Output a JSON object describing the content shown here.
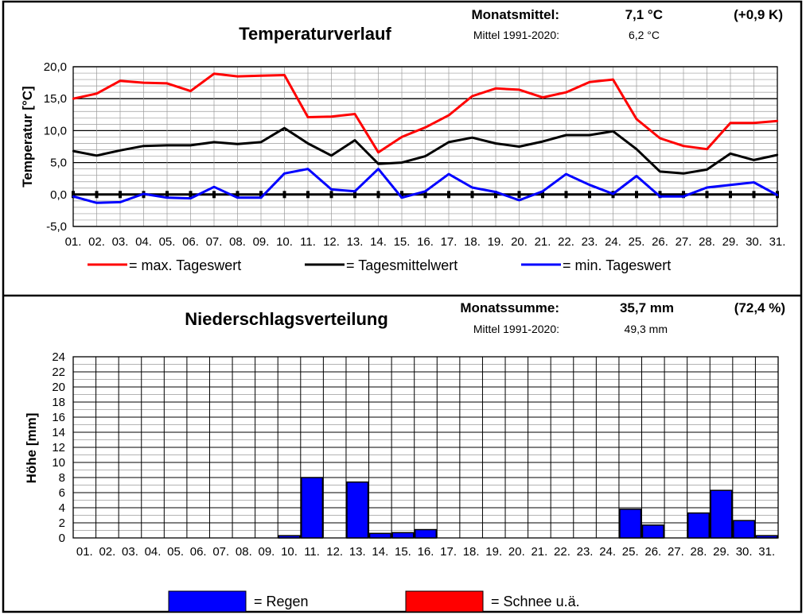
{
  "colors": {
    "max": "#ff0000",
    "mean": "#000000",
    "min": "#0000ff",
    "rain": "#0000ff",
    "snow": "#ff0000",
    "grid": "#9a9a9a",
    "frame": "#000000"
  },
  "temperature_panel": {
    "title": "Temperaturverlauf",
    "monthly_mean_label": "Monatsmittel:",
    "monthly_mean_value": "7,1 °C",
    "deviation": "(+0,9 K)",
    "reference_label": "Mittel 1991-2020:",
    "reference_value": "6,2 °C",
    "legend": {
      "max_label": "= max.  Tageswert",
      "mean_label": "= Tagesmittelwert",
      "min_label": "= min. Tageswert"
    }
  },
  "precip_panel": {
    "title": "Niederschlagsverteilung",
    "monthly_sum_label": "Monatssumme:",
    "monthly_sum_value": "35,7  mm",
    "percent": "(72,4 %)",
    "reference_label": "Mittel 1991-2020:",
    "reference_value": "49,3  mm",
    "legend": {
      "rain_label": "= Regen",
      "snow_label": "= Schnee u.ä."
    }
  },
  "chart_data": [
    {
      "type": "line",
      "title": "Temperaturverlauf",
      "ylabel": "Temperatur [°C]",
      "xlabel": "",
      "ylim": [
        -5,
        20
      ],
      "yticks": [
        "-5,0",
        "0,0",
        "5,0",
        "10,0",
        "15,0",
        "20,0"
      ],
      "categories": [
        "01.",
        "02.",
        "03.",
        "04.",
        "05.",
        "06.",
        "07.",
        "08.",
        "09.",
        "10.",
        "11.",
        "12.",
        "13.",
        "14.",
        "15.",
        "16.",
        "17.",
        "18.",
        "19.",
        "20.",
        "21.",
        "22.",
        "23.",
        "24.",
        "25.",
        "26.",
        "27.",
        "28.",
        "29.",
        "30.",
        "31."
      ],
      "series": [
        {
          "name": "max. Tageswert",
          "color": "#ff0000",
          "values": [
            15.0,
            15.8,
            17.8,
            17.5,
            17.4,
            16.2,
            18.9,
            18.5,
            18.6,
            18.7,
            12.1,
            12.2,
            12.6,
            6.6,
            9.0,
            10.5,
            12.4,
            15.4,
            16.6,
            16.4,
            15.2,
            16.0,
            17.6,
            18.0,
            11.8,
            8.8,
            7.6,
            7.1,
            11.2,
            11.2,
            11.5
          ]
        },
        {
          "name": "Tagesmittelwert",
          "color": "#000000",
          "values": [
            6.8,
            6.1,
            6.9,
            7.6,
            7.7,
            7.7,
            8.2,
            7.9,
            8.2,
            10.4,
            8.0,
            6.1,
            8.5,
            4.8,
            5.0,
            6.0,
            8.2,
            8.9,
            8.0,
            7.5,
            8.3,
            9.3,
            9.3,
            9.9,
            7.1,
            3.6,
            3.3,
            3.9,
            6.4,
            5.4,
            6.2
          ]
        },
        {
          "name": "min. Tageswert",
          "color": "#0000ff",
          "values": [
            -0.3,
            -1.3,
            -1.2,
            0.1,
            -0.5,
            -0.6,
            1.2,
            -0.5,
            -0.5,
            3.3,
            4.0,
            0.8,
            0.5,
            4.0,
            -0.5,
            0.5,
            3.2,
            1.1,
            0.4,
            -0.9,
            0.5,
            3.2,
            1.5,
            0.1,
            2.9,
            -0.3,
            -0.3,
            1.1,
            1.5,
            1.9,
            -0.1
          ]
        }
      ]
    },
    {
      "type": "bar",
      "title": "Niederschlagsverteilung",
      "ylabel": "Höhe [mm]",
      "xlabel": "",
      "ylim": [
        0,
        24
      ],
      "yticks": [
        "0",
        "2",
        "4",
        "6",
        "8",
        "10",
        "12",
        "14",
        "16",
        "18",
        "20",
        "22",
        "24"
      ],
      "categories": [
        "01.",
        "02.",
        "03.",
        "04.",
        "05.",
        "06.",
        "07.",
        "08.",
        "09.",
        "10.",
        "11.",
        "12.",
        "13.",
        "14.",
        "15.",
        "16.",
        "17.",
        "18.",
        "19.",
        "20.",
        "21.",
        "22.",
        "23.",
        "24.",
        "25.",
        "26.",
        "27.",
        "28.",
        "29.",
        "30.",
        "31."
      ],
      "series": [
        {
          "name": "Regen",
          "color": "#0000ff",
          "values": [
            0,
            0,
            0,
            0,
            0,
            0,
            0,
            0,
            0,
            0.3,
            8.0,
            0,
            7.4,
            0.6,
            0.7,
            1.1,
            0,
            0,
            0,
            0,
            0,
            0,
            0,
            0,
            3.8,
            1.7,
            0,
            3.3,
            6.3,
            2.3,
            0.3
          ]
        },
        {
          "name": "Schnee u.ä.",
          "color": "#ff0000",
          "values": [
            0,
            0,
            0,
            0,
            0,
            0,
            0,
            0,
            0,
            0,
            0,
            0,
            0,
            0,
            0,
            0,
            0,
            0,
            0,
            0,
            0,
            0,
            0,
            0,
            0,
            0,
            0,
            0,
            0,
            0,
            0
          ]
        }
      ]
    }
  ]
}
